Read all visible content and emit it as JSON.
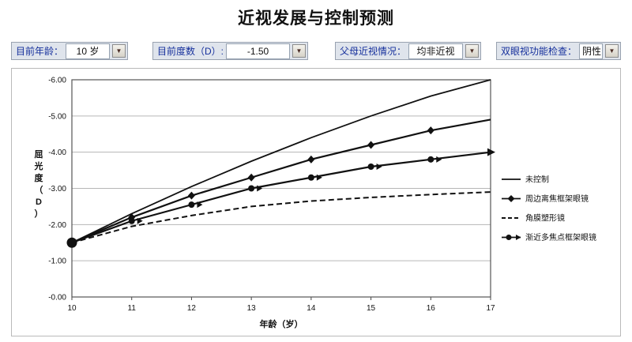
{
  "title": "近视发展与控制预测",
  "controls": [
    {
      "label": "目前年龄：",
      "value": "10 岁"
    },
    {
      "label": "目前度数（D）:",
      "value": "-1.50"
    },
    {
      "label": "父母近视情况：",
      "value": "均非近视"
    },
    {
      "label": "双眼视功能检查：",
      "value": "阴性"
    }
  ],
  "dropdown_icon": "▼",
  "chart_data": {
    "type": "line",
    "title": "近视发展与控制预测",
    "xlabel": "年龄（岁）",
    "ylabel": "屈光度（D）",
    "x": [
      10,
      11,
      12,
      13,
      14,
      15,
      16,
      17
    ],
    "xlim": [
      10,
      17
    ],
    "ylim": [
      0,
      -6
    ],
    "yticks": [
      "-0.00",
      "-1.00",
      "-2.00",
      "-3.00",
      "-4.00",
      "-5.00",
      "-6.00"
    ],
    "grid": true,
    "legend_position": "right",
    "start_point": {
      "x": 10,
      "y": -1.5
    },
    "series": [
      {
        "name": "未控制",
        "line": "solid",
        "marker": "none",
        "values": [
          -1.5,
          -2.3,
          -3.05,
          -3.75,
          -4.4,
          -5.0,
          -5.55,
          -6.0
        ]
      },
      {
        "name": "周边离焦框架眼镜",
        "line": "solid",
        "marker": "diamond",
        "values": [
          -1.5,
          -2.2,
          -2.8,
          -3.3,
          -3.8,
          -4.2,
          -4.6,
          -4.9
        ]
      },
      {
        "name": "角膜塑形镜",
        "line": "dashed",
        "marker": "none",
        "values": [
          -1.5,
          -1.95,
          -2.25,
          -2.5,
          -2.65,
          -2.75,
          -2.83,
          -2.9
        ]
      },
      {
        "name": "渐近多焦点框架眼镜",
        "line": "solid",
        "marker": "circle-arrow",
        "values": [
          -1.5,
          -2.1,
          -2.55,
          -3.0,
          -3.3,
          -3.6,
          -3.8,
          -4.0
        ]
      }
    ]
  }
}
